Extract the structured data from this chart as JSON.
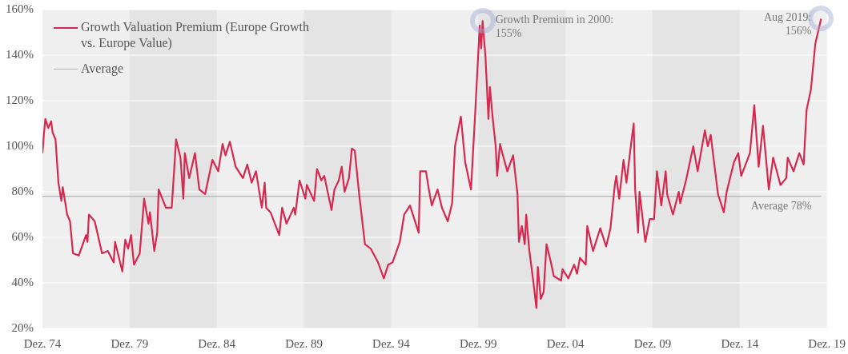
{
  "chart_data": {
    "type": "line",
    "x": [
      "1974-12",
      "1975-01",
      "1975-02",
      "1975-04",
      "1975-06",
      "1975-07",
      "1975-09",
      "1975-11",
      "1976-01",
      "1976-02",
      "1976-05",
      "1976-07",
      "1976-09",
      "1977-01",
      "1977-06",
      "1977-07",
      "1977-08",
      "1977-12",
      "1978-05",
      "1978-09",
      "1979-01",
      "1979-02",
      "1979-07",
      "1979-09",
      "1979-11",
      "1980-01",
      "1980-03",
      "1980-07",
      "1980-10",
      "1981-01",
      "1981-02",
      "1981-05",
      "1981-07",
      "1981-08",
      "1982-01",
      "1982-05",
      "1982-08",
      "1982-11",
      "1983-01",
      "1983-02",
      "1983-05",
      "1983-09",
      "1983-12",
      "1984-04",
      "1984-09",
      "1985-01",
      "1985-04",
      "1985-06",
      "1985-09",
      "1986-01",
      "1986-06",
      "1986-09",
      "1986-12",
      "1987-03",
      "1987-07",
      "1987-09",
      "1987-10",
      "1988-01",
      "1988-07",
      "1988-09",
      "1988-12",
      "1989-05",
      "1989-06",
      "1989-09",
      "1990-01",
      "1990-02",
      "1990-07",
      "1990-09",
      "1990-12",
      "1991-02",
      "1991-05",
      "1991-07",
      "1991-09",
      "1991-12",
      "1992-02",
      "1992-04",
      "1992-07",
      "1992-09",
      "1992-11",
      "1993-02",
      "1993-06",
      "1993-10",
      "1994-03",
      "1994-07",
      "1994-10",
      "1995-01",
      "1995-06",
      "1995-09",
      "1996-01",
      "1996-07",
      "1996-08",
      "1996-12",
      "1997-02",
      "1997-04",
      "1997-08",
      "1997-11",
      "1998-03",
      "1998-06",
      "1998-08",
      "1998-12",
      "1999-03",
      "1999-07",
      "1999-10",
      "2000-01",
      "2000-02",
      "2000-03",
      "2000-05",
      "2000-07",
      "2000-08",
      "2000-10",
      "2000-12",
      "2001-01",
      "2001-03",
      "2001-05",
      "2001-08",
      "2001-12",
      "2002-03",
      "2002-04",
      "2002-06",
      "2002-08",
      "2002-09",
      "2002-11",
      "2003-02",
      "2003-04",
      "2003-05",
      "2003-07",
      "2003-09",
      "2003-11",
      "2004-02",
      "2004-04",
      "2004-09",
      "2004-10",
      "2005-02",
      "2005-06",
      "2005-08",
      "2005-10",
      "2006-02",
      "2006-03",
      "2006-07",
      "2006-12",
      "2007-04",
      "2007-07",
      "2007-10",
      "2007-11",
      "2008-01",
      "2008-04",
      "2008-06",
      "2008-09",
      "2008-11",
      "2008-12",
      "2009-02",
      "2009-03",
      "2009-07",
      "2009-10",
      "2010-01",
      "2010-03",
      "2010-06",
      "2010-09",
      "2010-10",
      "2011-02",
      "2011-06",
      "2011-07",
      "2011-11",
      "2012-04",
      "2012-07",
      "2012-12",
      "2013-02",
      "2013-04",
      "2013-09",
      "2014-01",
      "2014-03",
      "2014-08",
      "2014-11",
      "2015-01",
      "2015-04",
      "2015-07",
      "2015-10",
      "2016-01",
      "2016-04",
      "2016-08",
      "2016-11",
      "2017-04",
      "2017-08",
      "2017-09",
      "2018-01",
      "2018-05",
      "2018-08",
      "2018-10",
      "2019-01",
      "2019-04",
      "2019-08"
    ],
    "series": [
      {
        "name": "Growth Valuation Premium (Europe Growth vs. Europe Value)",
        "color": "#d7284f",
        "values": [
          97,
          105,
          112,
          108,
          111,
          106,
          103,
          84,
          76,
          82,
          70,
          67,
          53,
          52,
          61,
          58,
          70,
          67,
          53,
          54,
          49,
          58,
          45,
          59,
          55,
          61,
          48,
          53,
          77,
          66,
          71,
          54,
          62,
          81,
          73,
          73,
          103,
          95,
          77,
          97,
          86,
          97,
          81,
          79,
          94,
          89,
          101,
          96,
          102,
          91,
          86,
          92,
          84,
          89,
          73,
          84,
          73,
          71,
          61,
          73,
          66,
          73,
          70,
          85,
          77,
          83,
          76,
          90,
          85,
          87,
          78,
          72,
          81,
          85,
          91,
          80,
          86,
          99,
          98,
          79,
          57,
          55,
          49,
          42,
          48,
          49,
          58,
          70,
          74,
          62,
          89,
          89,
          81,
          74,
          81,
          73,
          67,
          75,
          100,
          113,
          93,
          81,
          116,
          153,
          143,
          155,
          139,
          112,
          126,
          112,
          100,
          87,
          101,
          96,
          89,
          96,
          79,
          58,
          65,
          57,
          70,
          55,
          40,
          29,
          47,
          33,
          36,
          57,
          49,
          43,
          41,
          46,
          42,
          48,
          44,
          51,
          48,
          65,
          54,
          64,
          56,
          64,
          83,
          87,
          77,
          94,
          84,
          100,
          110,
          81,
          62,
          80,
          58,
          68,
          68,
          89,
          74,
          89,
          79,
          70,
          80,
          75,
          85,
          100,
          89,
          107,
          100,
          105,
          79,
          71,
          80,
          93,
          97,
          87,
          92,
          97,
          118,
          91,
          109,
          81,
          95,
          83,
          86,
          95,
          89,
          97,
          92,
          116,
          125,
          145,
          156
        ]
      },
      {
        "name": "Average",
        "color": "#b4b4b4",
        "x": [
          "1974-12",
          "2019-08"
        ],
        "values": [
          78,
          78
        ]
      }
    ],
    "xlim": [
      "1974-12",
      "2019-12"
    ],
    "xticks": [
      {
        "value": "1974-12",
        "label": "Dez. 74"
      },
      {
        "value": "1979-12",
        "label": "Dez. 79"
      },
      {
        "value": "1984-12",
        "label": "Dez. 84"
      },
      {
        "value": "1989-12",
        "label": "Dez. 89"
      },
      {
        "value": "1994-12",
        "label": "Dez. 94"
      },
      {
        "value": "1999-12",
        "label": "Dez. 99"
      },
      {
        "value": "2004-12",
        "label": "Dez. 04"
      },
      {
        "value": "2009-12",
        "label": "Dez. 09"
      },
      {
        "value": "2014-12",
        "label": "Dez. 14"
      },
      {
        "value": "2019-12",
        "label": "Dez. 19"
      }
    ],
    "ylim": [
      20,
      160
    ],
    "yticks": [
      {
        "value": 20,
        "label": "20%"
      },
      {
        "value": 40,
        "label": "40%"
      },
      {
        "value": 60,
        "label": "60%"
      },
      {
        "value": 80,
        "label": "80%"
      },
      {
        "value": 100,
        "label": "100%"
      },
      {
        "value": 120,
        "label": "120%"
      },
      {
        "value": 140,
        "label": "140%"
      },
      {
        "value": 160,
        "label": "160%"
      }
    ],
    "bands": [
      {
        "axis": "x",
        "from": "1979-12",
        "to": "1984-12",
        "color": "#e4e4e4"
      },
      {
        "axis": "x",
        "from": "1989-12",
        "to": "1994-12",
        "color": "#e4e4e4"
      },
      {
        "axis": "x",
        "from": "1999-12",
        "to": "2004-12",
        "color": "#e4e4e4"
      },
      {
        "axis": "x",
        "from": "2009-12",
        "to": "2014-12",
        "color": "#e4e4e4"
      }
    ],
    "annotations": [
      {
        "text": "Growth Premium in 2000:\n155%",
        "x": "2000-03",
        "y": 155
      },
      {
        "text": "Aug 2019:\n156%",
        "x": "2019-08",
        "y": 156
      },
      {
        "text": "Average 78%",
        "x": "2019-08",
        "y": 78
      }
    ],
    "grid": "y",
    "legend": "top left",
    "marker": "none",
    "line_style": "solid"
  }
}
